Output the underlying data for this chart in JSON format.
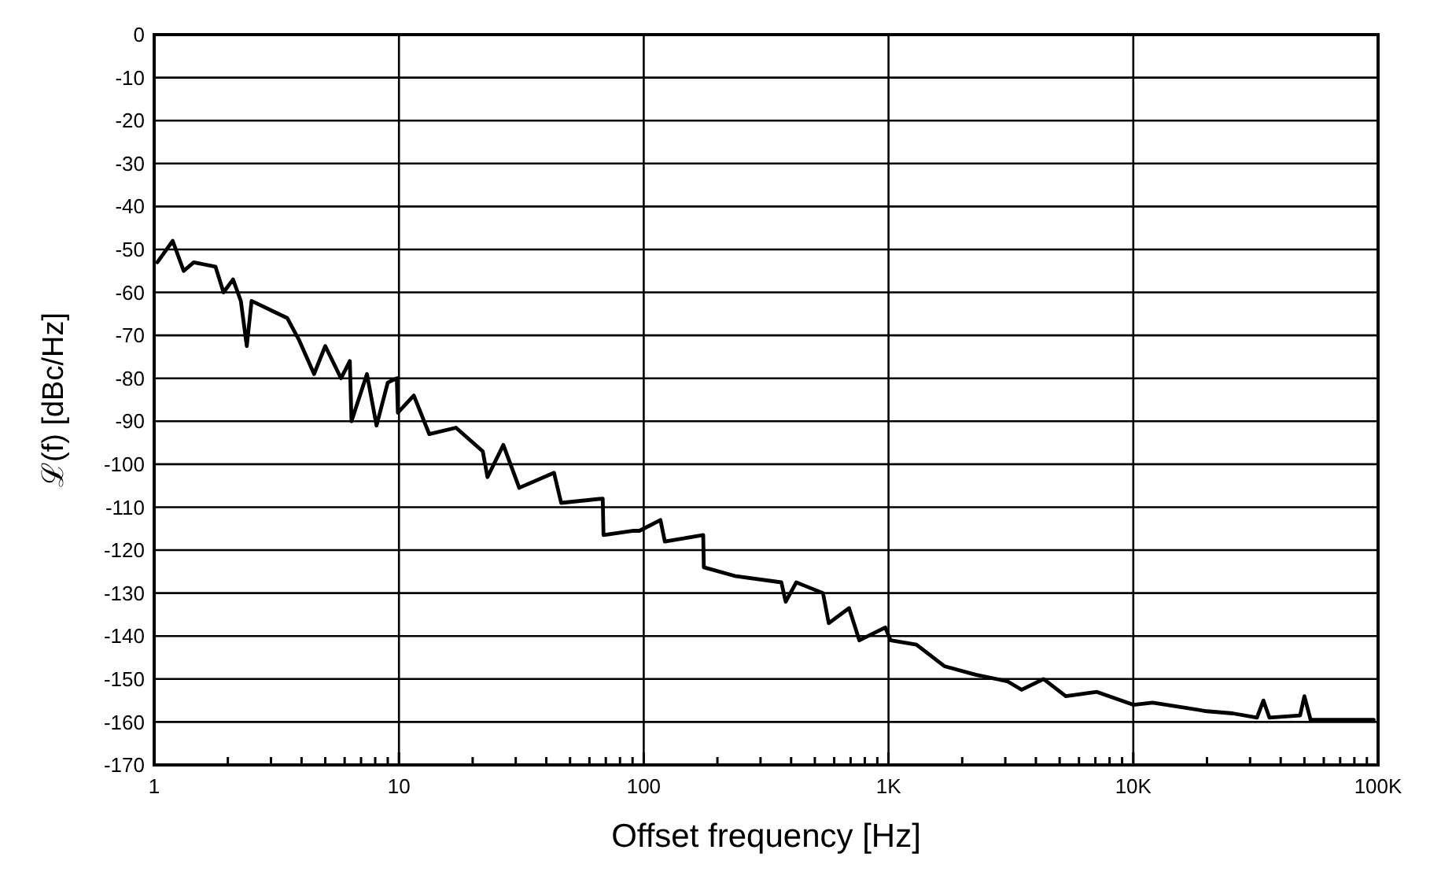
{
  "chart_data": {
    "type": "line",
    "xlabel": "Offset frequency [Hz]",
    "ylabel": "ℒ(f) [dBc/Hz]",
    "log": "x",
    "grid": true,
    "marker": "none",
    "line_style": "solid",
    "xlim": [
      1,
      100000
    ],
    "ylim": [
      -170,
      0
    ],
    "xticks": [
      1,
      {
        "value": 2,
        "label": null
      },
      {
        "value": 3,
        "label": null
      },
      {
        "value": 4,
        "label": null
      },
      {
        "value": 5,
        "label": null
      },
      {
        "value": 6,
        "label": null
      },
      {
        "value": 7,
        "label": null
      },
      {
        "value": 8,
        "label": null
      },
      {
        "value": 9,
        "label": null
      },
      10,
      {
        "value": 20,
        "label": null
      },
      {
        "value": 30,
        "label": null
      },
      {
        "value": 40,
        "label": null
      },
      {
        "value": 50,
        "label": null
      },
      {
        "value": 60,
        "label": null
      },
      {
        "value": 70,
        "label": null
      },
      {
        "value": 80,
        "label": null
      },
      {
        "value": 90,
        "label": null
      },
      100,
      {
        "value": 200,
        "label": null
      },
      {
        "value": 300,
        "label": null
      },
      {
        "value": 400,
        "label": null
      },
      {
        "value": 500,
        "label": null
      },
      {
        "value": 600,
        "label": null
      },
      {
        "value": 700,
        "label": null
      },
      {
        "value": 800,
        "label": null
      },
      {
        "value": 900,
        "label": null
      },
      {
        "value": 1000,
        "label": "1K"
      },
      {
        "value": 2000,
        "label": null
      },
      {
        "value": 3000,
        "label": null
      },
      {
        "value": 4000,
        "label": null
      },
      {
        "value": 5000,
        "label": null
      },
      {
        "value": 6000,
        "label": null
      },
      {
        "value": 7000,
        "label": null
      },
      {
        "value": 8000,
        "label": null
      },
      {
        "value": 9000,
        "label": null
      },
      {
        "value": 10000,
        "label": "10K"
      },
      {
        "value": 20000,
        "label": null
      },
      {
        "value": 30000,
        "label": null
      },
      {
        "value": 40000,
        "label": null
      },
      {
        "value": 50000,
        "label": null
      },
      {
        "value": 60000,
        "label": null
      },
      {
        "value": 70000,
        "label": null
      },
      {
        "value": 80000,
        "label": null
      },
      {
        "value": 90000,
        "label": null
      },
      {
        "value": 100000,
        "label": "100K"
      }
    ],
    "yticks": [
      -170,
      -160,
      -150,
      -140,
      -130,
      -120,
      -110,
      -100,
      -90,
      -80,
      -70,
      -60,
      -50,
      -40,
      -30,
      -20,
      -10,
      0
    ],
    "series": [
      {
        "color": "#000000",
        "x": [
          1.03,
          1.19,
          1.32,
          1.45,
          1.78,
          1.92,
          2.1,
          2.26,
          2.39,
          2.5,
          3.5,
          3.9,
          4.5,
          5.0,
          5.8,
          6.3,
          6.4,
          7.4,
          8.1,
          9.0,
          9.8,
          9.9,
          11.5,
          13.3,
          17.1,
          22,
          23,
          26.7,
          31,
          43,
          46,
          68,
          68.5,
          91,
          96,
          117,
          122,
          175,
          176,
          235,
          365,
          380,
          420,
          540,
          570,
          690,
          760,
          970,
          1020,
          1300,
          1690,
          2270,
          3050,
          3500,
          4300,
          5300,
          7100,
          10000,
          12000,
          20000,
          25500,
          32000,
          34000,
          36000,
          48000,
          50000,
          53000,
          96000
        ],
        "values": [
          -53,
          -48,
          -55,
          -53,
          -54,
          -60,
          -57,
          -62,
          -72.5,
          -62,
          -66,
          -71,
          -79,
          -72.5,
          -80,
          -76,
          -90,
          -79,
          -91,
          -81,
          -80,
          -88,
          -84,
          -93,
          -91.5,
          -97,
          -103,
          -95.5,
          -105.5,
          -102,
          -109,
          -108,
          -116.5,
          -115.5,
          -115.5,
          -113,
          -118,
          -116.5,
          -124,
          -126,
          -127.5,
          -132,
          -127.5,
          -130,
          -137,
          -133.5,
          -141,
          -138,
          -141,
          -142,
          -147,
          -149,
          -150.5,
          -152.5,
          -150,
          -154,
          -153,
          -156,
          -155.5,
          -157.5,
          -158,
          -159,
          -155,
          -159,
          -158.5,
          -154,
          -159.5,
          -159.5
        ]
      }
    ]
  }
}
